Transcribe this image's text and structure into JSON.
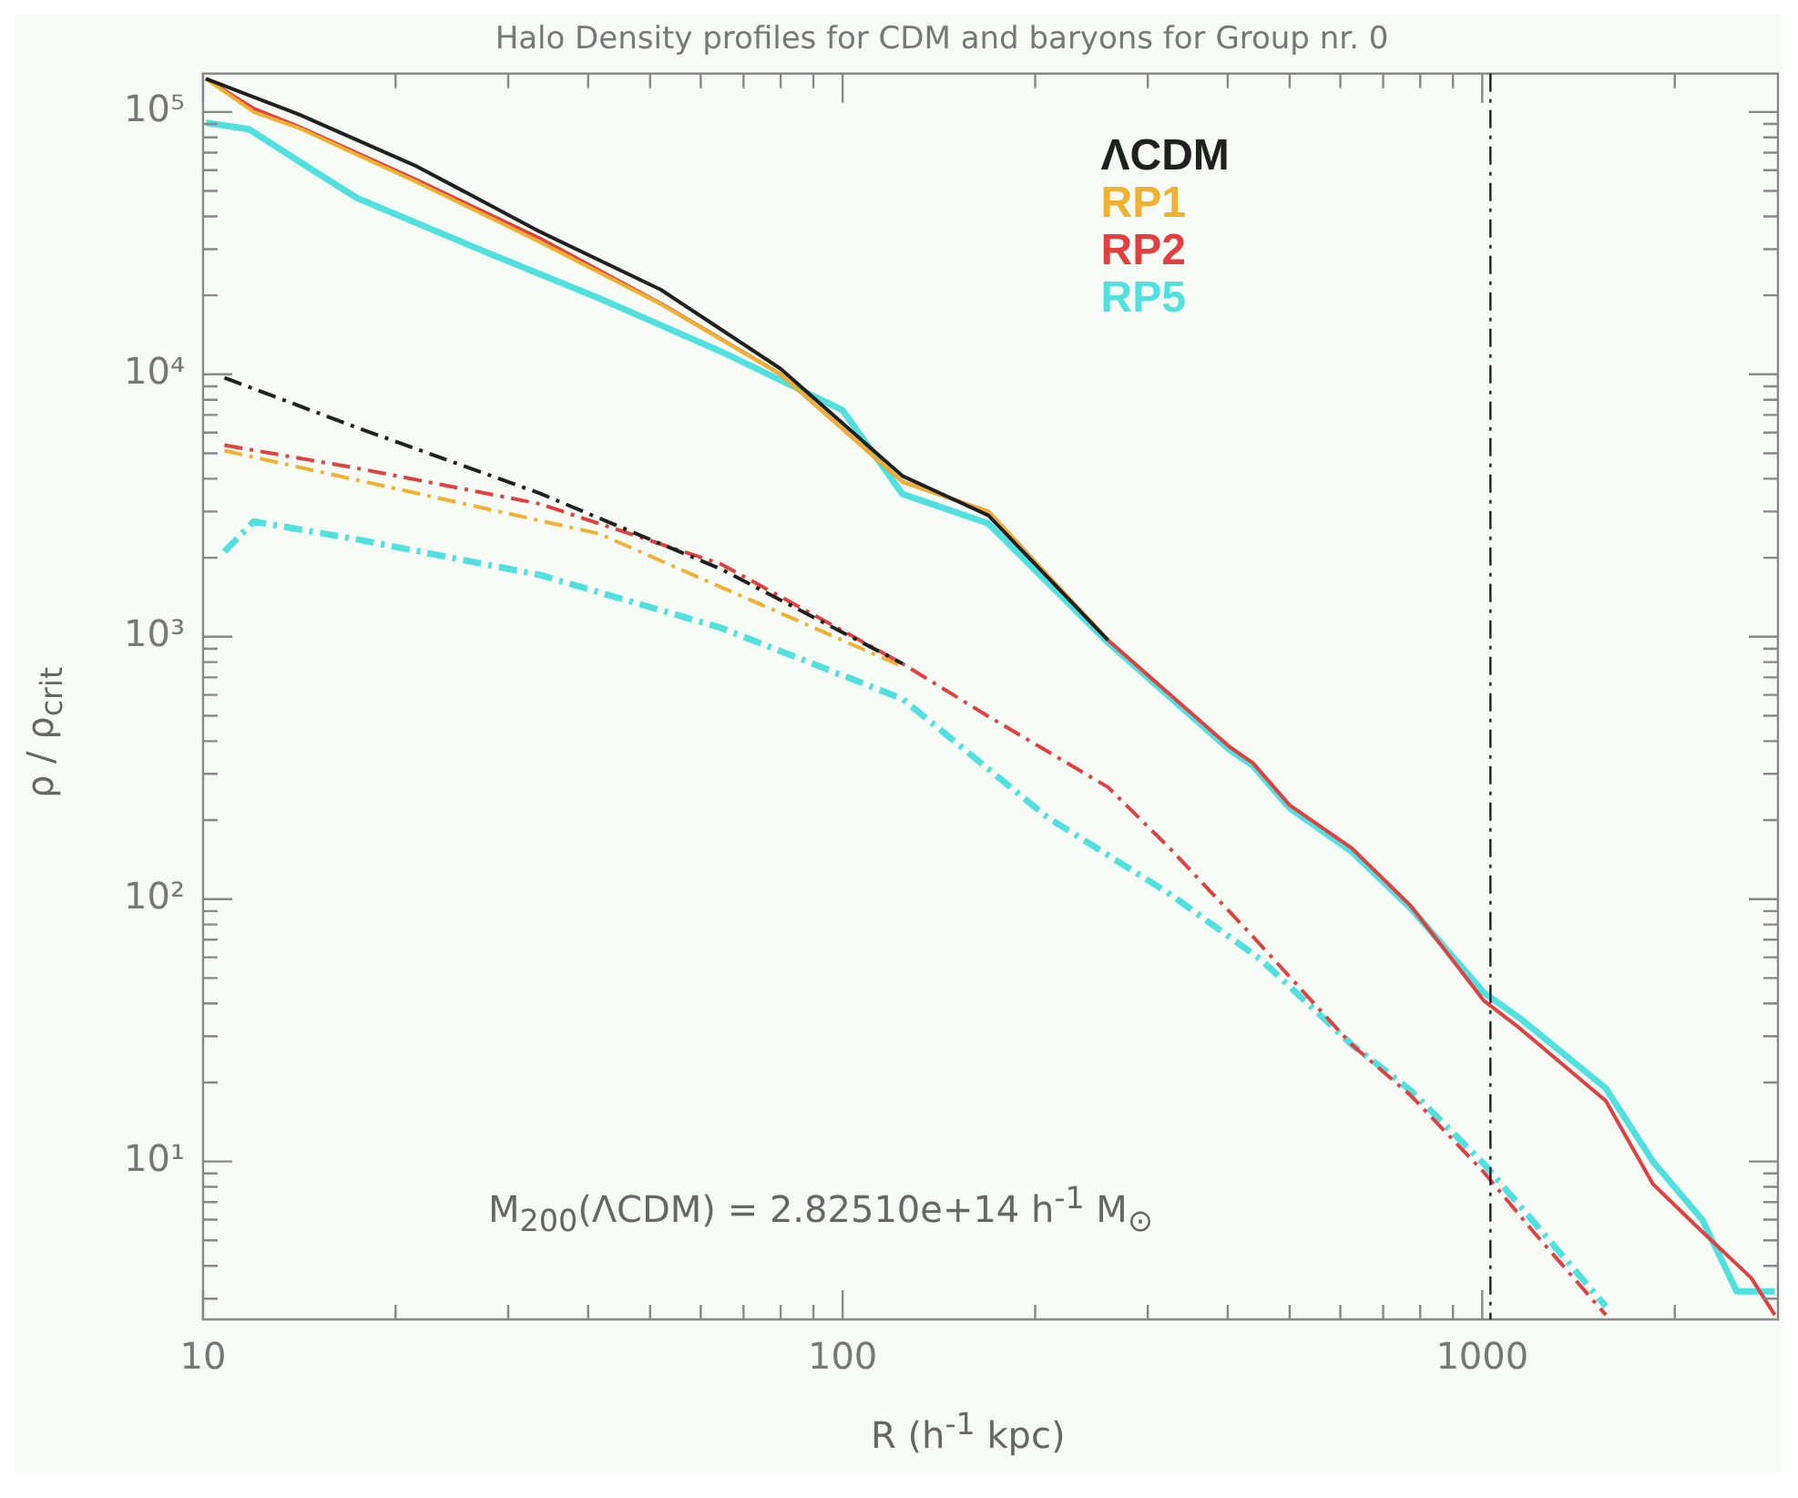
{
  "chart_data": {
    "type": "line",
    "title": "Halo Density profiles for CDM and baryons for Group nr. 0",
    "xlabel": "R (h$^{-1}$ kpc)",
    "ylabel": "ρ / ρ$_{crit}$",
    "annotations": [
      "M$_{200}$(ΛCDM) = 2.82510e+14 h$^{-1}$ M$_{⊙}$"
    ],
    "log": "xy",
    "grid": false,
    "legend": "top right",
    "xlim": [
      10,
      2900
    ],
    "ylim": [
      2.5,
      140000
    ],
    "xticks": [
      10,
      {
        "value": 20,
        "label": null
      },
      {
        "value": 30,
        "label": null
      },
      {
        "value": 40,
        "label": null
      },
      {
        "value": 50,
        "label": null
      },
      {
        "value": 60,
        "label": null
      },
      {
        "value": 70,
        "label": null
      },
      {
        "value": 80,
        "label": null
      },
      {
        "value": 90,
        "label": null
      },
      100,
      {
        "value": 200,
        "label": null
      },
      {
        "value": 300,
        "label": null
      },
      {
        "value": 400,
        "label": null
      },
      {
        "value": 500,
        "label": null
      },
      {
        "value": 600,
        "label": null
      },
      {
        "value": 700,
        "label": null
      },
      {
        "value": 800,
        "label": null
      },
      {
        "value": 900,
        "label": null
      },
      1000,
      {
        "value": 2000,
        "label": null
      }
    ],
    "yticks": [
      {
        "value": 3,
        "label": null
      },
      {
        "value": 4,
        "label": null
      },
      {
        "value": 5,
        "label": null
      },
      {
        "value": 6,
        "label": null
      },
      {
        "value": 7,
        "label": null
      },
      {
        "value": 8,
        "label": null
      },
      {
        "value": 9,
        "label": null
      },
      {
        "value": 10,
        "label": "10¹"
      },
      {
        "value": 20,
        "label": null
      },
      {
        "value": 30,
        "label": null
      },
      {
        "value": 40,
        "label": null
      },
      {
        "value": 50,
        "label": null
      },
      {
        "value": 60,
        "label": null
      },
      {
        "value": 70,
        "label": null
      },
      {
        "value": 80,
        "label": null
      },
      {
        "value": 90,
        "label": null
      },
      {
        "value": 100,
        "label": "10²"
      },
      {
        "value": 200,
        "label": null
      },
      {
        "value": 300,
        "label": null
      },
      {
        "value": 400,
        "label": null
      },
      {
        "value": 500,
        "label": null
      },
      {
        "value": 600,
        "label": null
      },
      {
        "value": 700,
        "label": null
      },
      {
        "value": 800,
        "label": null
      },
      {
        "value": 900,
        "label": null
      },
      {
        "value": 1000,
        "label": "10³"
      },
      {
        "value": 2000,
        "label": null
      },
      {
        "value": 3000,
        "label": null
      },
      {
        "value": 4000,
        "label": null
      },
      {
        "value": 5000,
        "label": null
      },
      {
        "value": 6000,
        "label": null
      },
      {
        "value": 7000,
        "label": null
      },
      {
        "value": 8000,
        "label": null
      },
      {
        "value": 9000,
        "label": null
      },
      {
        "value": 10000,
        "label": "10⁴"
      },
      {
        "value": 20000,
        "label": null
      },
      {
        "value": 30000,
        "label": null
      },
      {
        "value": 40000,
        "label": null
      },
      {
        "value": 50000,
        "label": null
      },
      {
        "value": 60000,
        "label": null
      },
      {
        "value": 70000,
        "label": null
      },
      {
        "value": 80000,
        "label": null
      },
      {
        "value": 90000,
        "label": null
      },
      {
        "value": 100000,
        "label": "10⁵"
      }
    ],
    "ref_lines": [
      {
        "axis": "x",
        "value": 1030,
        "color": "#202020",
        "line_style": "dashed"
      }
    ],
    "series": [
      {
        "name": "ΛCDM",
        "color": "#202020",
        "line_style": "solid",
        "x": [
          10.1,
          14.1,
          21.6,
          33.6,
          52,
          80,
          124,
          169,
          260
        ],
        "values": [
          134000,
          98000,
          62000,
          35000,
          21000,
          10500,
          4100,
          2900,
          970
        ]
      },
      {
        "name": "RP1",
        "color": "#f0b030",
        "line_style": "solid",
        "x": [
          10.1,
          12.0,
          14.1,
          21.6,
          33.6,
          52,
          80,
          124,
          169,
          260
        ],
        "values": [
          134000,
          100000,
          87000,
          54000,
          32000,
          18500,
          10000,
          3900,
          3000,
          970
        ]
      },
      {
        "name": "RP2",
        "color": "#e04040",
        "line_style": "solid",
        "x": [
          10.1,
          12.0,
          14.1,
          21.6,
          33.6,
          52,
          80,
          124,
          169,
          260,
          403,
          438,
          500,
          624,
          774,
          1006,
          1148,
          1561,
          1849,
          2208,
          2633,
          2867
        ],
        "values": [
          134000,
          103000,
          88000,
          55000,
          33000,
          18600,
          10000,
          3900,
          3000,
          970,
          380,
          330,
          228,
          157,
          94,
          41,
          32,
          17,
          8.2,
          5.4,
          3.6,
          2.6
        ]
      },
      {
        "name": "RP5",
        "color": "#50e0e0",
        "line_style": "solid",
        "x": [
          10.1,
          11.8,
          14.1,
          17.4,
          27,
          41.6,
          64.6,
          100,
          124,
          169,
          260,
          403,
          438,
          500,
          624,
          774,
          1006,
          1148,
          1561,
          1849,
          2208,
          2500,
          2867
        ],
        "values": [
          91000,
          86000,
          65000,
          47000,
          30000,
          19500,
          12200,
          7300,
          3500,
          2700,
          950,
          370,
          322,
          222,
          152,
          92,
          44,
          35,
          19,
          10,
          6.0,
          3.2,
          3.2
        ]
      },
      {
        "color": "#202020",
        "line_style": "dashed",
        "x": [
          10.8,
          17.4,
          33.6,
          64.6,
          124
        ],
        "values": [
          9700,
          6270,
          3520,
          1810,
          790
        ]
      },
      {
        "color": "#f0b030",
        "line_style": "dashed",
        "x": [
          10.8,
          21.6,
          41.6,
          124
        ],
        "values": [
          5120,
          3520,
          2470,
          770
        ]
      },
      {
        "color": "#e04040",
        "line_style": "dashed",
        "x": [
          10.8,
          17.4,
          33.6,
          64.6,
          124,
          169,
          260,
          324,
          438,
          624,
          774,
          1006,
          1202,
          1561
        ],
        "values": [
          5370,
          4390,
          3210,
          1890,
          790,
          497,
          267,
          157,
          72,
          28,
          17.8,
          9.1,
          5.4,
          2.6
        ]
      },
      {
        "color": "#50e0e0",
        "line_style": "dashed",
        "x": [
          10.8,
          12.0,
          17.4,
          33.6,
          64.6,
          124,
          209,
          324,
          450,
          624,
          774,
          1006,
          1202,
          1561
        ],
        "values": [
          2110,
          2750,
          2350,
          1720,
          1080,
          580,
          205,
          105,
          59,
          28,
          18.6,
          9.8,
          5.9,
          2.8
        ]
      }
    ]
  }
}
